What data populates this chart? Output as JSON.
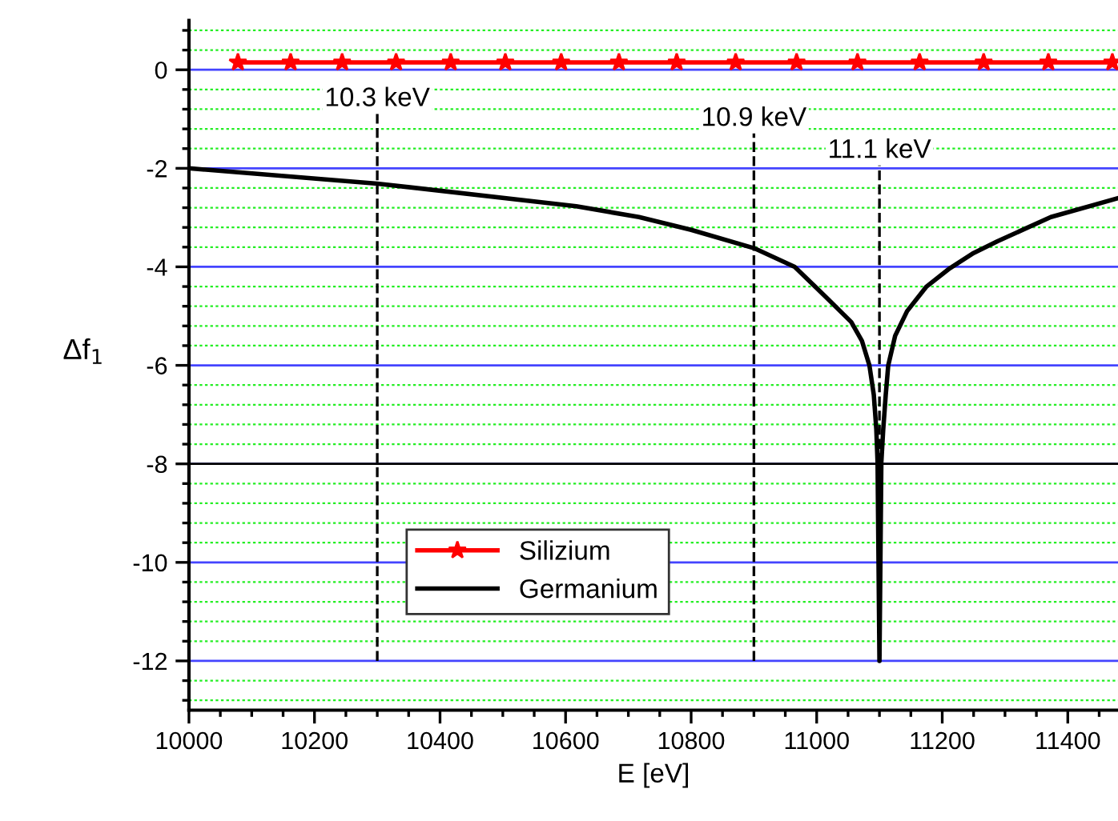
{
  "chart_data": {
    "type": "line",
    "xlabel": "E [eV]",
    "ylabel": "Δf$_{1}$",
    "xlim": [
      10000,
      11480
    ],
    "xticks": [
      10000,
      10200,
      10400,
      10600,
      10800,
      11000,
      11200,
      11400,
      {
        "value": 10050,
        "label": null
      },
      {
        "value": 10100,
        "label": null
      },
      {
        "value": 10150,
        "label": null
      },
      {
        "value": 10250,
        "label": null
      },
      {
        "value": 10300,
        "label": null
      },
      {
        "value": 10350,
        "label": null
      },
      {
        "value": 10450,
        "label": null
      },
      {
        "value": 10500,
        "label": null
      },
      {
        "value": 10550,
        "label": null
      },
      {
        "value": 10650,
        "label": null
      },
      {
        "value": 10700,
        "label": null
      },
      {
        "value": 10750,
        "label": null
      },
      {
        "value": 10850,
        "label": null
      },
      {
        "value": 10900,
        "label": null
      },
      {
        "value": 10950,
        "label": null
      },
      {
        "value": 11050,
        "label": null
      },
      {
        "value": 11100,
        "label": null
      },
      {
        "value": 11150,
        "label": null
      },
      {
        "value": 11250,
        "label": null
      },
      {
        "value": 11300,
        "label": null
      },
      {
        "value": 11350,
        "label": null
      },
      {
        "value": 11450,
        "label": null
      }
    ],
    "ylim": [
      -13,
      1
    ],
    "yticks": [
      0,
      -2,
      -4,
      -6,
      -8,
      -10,
      -12,
      {
        "value": 0.8,
        "label": null
      },
      {
        "value": 0.4,
        "label": null
      },
      {
        "value": -0.4,
        "label": null
      },
      {
        "value": -0.8,
        "label": null
      },
      {
        "value": -1.2,
        "label": null
      },
      {
        "value": -1.6,
        "label": null
      },
      {
        "value": -2.4,
        "label": null
      },
      {
        "value": -2.8,
        "label": null
      },
      {
        "value": -3.2,
        "label": null
      },
      {
        "value": -3.6,
        "label": null
      },
      {
        "value": -4.4,
        "label": null
      },
      {
        "value": -4.8,
        "label": null
      },
      {
        "value": -5.2,
        "label": null
      },
      {
        "value": -5.6,
        "label": null
      },
      {
        "value": -6.4,
        "label": null
      },
      {
        "value": -6.8,
        "label": null
      },
      {
        "value": -7.2,
        "label": null
      },
      {
        "value": -7.6,
        "label": null
      },
      {
        "value": -8.4,
        "label": null
      },
      {
        "value": -8.8,
        "label": null
      },
      {
        "value": -9.2,
        "label": null
      },
      {
        "value": -9.6,
        "label": null
      },
      {
        "value": -10.4,
        "label": null
      },
      {
        "value": -10.8,
        "label": null
      },
      {
        "value": -11.2,
        "label": null
      },
      {
        "value": -11.6,
        "label": null
      },
      {
        "value": -12.4,
        "label": null
      },
      {
        "value": -12.8,
        "label": null
      }
    ],
    "grid": "y",
    "legend": "bottom left",
    "series": [
      {
        "name": "Silizium",
        "color": "#ff0000",
        "marker": "star",
        "x": [
          10078,
          10162,
          10244,
          10330,
          10417,
          10504,
          10593,
          10685,
          10777,
          10871,
          10968,
          11065,
          11164,
          11266,
          11369,
          11471
        ],
        "values": [
          0.15,
          0.15,
          0.15,
          0.15,
          0.15,
          0.15,
          0.15,
          0.15,
          0.15,
          0.15,
          0.15,
          0.15,
          0.15,
          0.15,
          0.15,
          0.15
        ]
      },
      {
        "name": "Germanium",
        "color": "#000000",
        "marker": "none",
        "x": [
          10000,
          10300,
          10617,
          10717,
          10800,
          10900,
          10965,
          11016,
          11055,
          11072,
          11084,
          11091,
          11095,
          11097,
          11100,
          11103,
          11106,
          11110,
          11114,
          11125,
          11144,
          11175,
          11212,
          11250,
          11288,
          11373,
          11479
        ],
        "values": [
          -2.0,
          -2.31,
          -2.77,
          -2.99,
          -3.25,
          -3.62,
          -4.0,
          -4.63,
          -5.12,
          -5.5,
          -6.0,
          -6.6,
          -7.3,
          -7.97,
          -12.0,
          -7.97,
          -7.3,
          -6.6,
          -6.0,
          -5.4,
          -4.9,
          -4.4,
          -4.03,
          -3.72,
          -3.48,
          -2.99,
          -2.61
        ]
      }
    ],
    "ref_lines": [
      {
        "axis": "x",
        "value": 10300,
        "label": "10.3 keV",
        "color": "#000000",
        "line_style": "dashed"
      },
      {
        "axis": "x",
        "value": 10900,
        "label": "10.9 keV",
        "color": "#000000",
        "line_style": "dashed"
      },
      {
        "axis": "x",
        "value": 11100,
        "label": "11.1 keV",
        "color": "#000000",
        "line_style": "dashed"
      },
      {
        "axis": "y",
        "value": -8,
        "color": "#000000",
        "line_style": "solid"
      }
    ]
  }
}
